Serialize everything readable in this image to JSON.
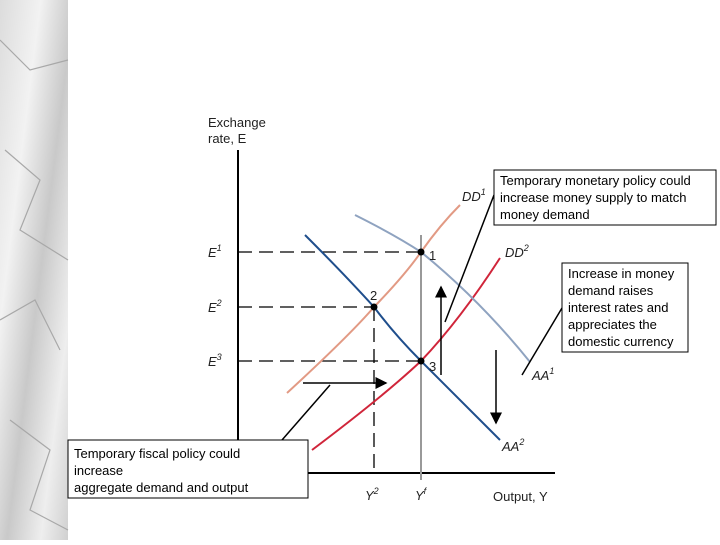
{
  "axes": {
    "y_label": [
      "Exchange",
      "rate, E"
    ],
    "x_label": "Output, Y"
  },
  "levels": [
    {
      "base": "E",
      "sup": "1"
    },
    {
      "base": "E",
      "sup": "2"
    },
    {
      "base": "E",
      "sup": "3"
    }
  ],
  "outputs": [
    {
      "base": "Y",
      "sup": "2"
    },
    {
      "base": "Y",
      "sup": "f"
    }
  ],
  "curves": [
    {
      "base": "DD",
      "sup": "1"
    },
    {
      "base": "DD",
      "sup": "2"
    },
    {
      "base": "AA",
      "sup": "1"
    },
    {
      "base": "AA",
      "sup": "2"
    }
  ],
  "points": [
    "1",
    "2",
    "3"
  ],
  "callouts": [
    {
      "lines": [
        "Temporary monetary policy could",
        "increase money supply to match",
        "money demand"
      ]
    },
    {
      "lines": [
        "Increase in money",
        "demand raises",
        "interest rates and",
        "appreciates the",
        "domestic currency"
      ]
    },
    {
      "lines": [
        "Temporary fiscal policy could",
        "increase",
        "aggregate demand and output"
      ]
    }
  ]
}
